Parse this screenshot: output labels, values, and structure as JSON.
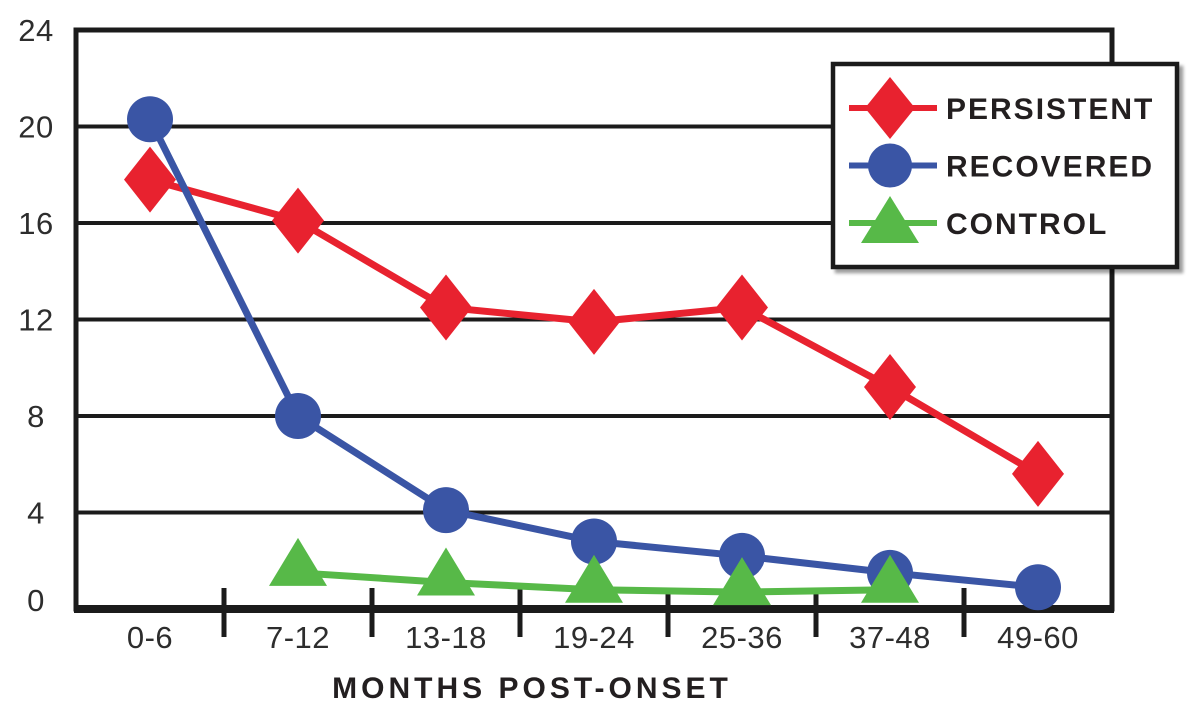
{
  "chart_data": {
    "type": "line",
    "xlabel": "MONTHS POST-ONSET",
    "categories": [
      "0-6",
      "7-12",
      "13-18",
      "19-24",
      "25-36",
      "37-48",
      "49-60"
    ],
    "ylim": [
      0,
      24
    ],
    "yticks": [
      0,
      4,
      8,
      12,
      16,
      20,
      24
    ],
    "grid": true,
    "legend_position": "top-right",
    "series": [
      {
        "name": "PERSISTENT",
        "marker": "diamond",
        "color": "#E8222F",
        "values": [
          17.8,
          16.1,
          12.5,
          11.9,
          12.5,
          9.2,
          5.6
        ]
      },
      {
        "name": "RECOVERED",
        "marker": "circle",
        "color": "#3A55A5",
        "values": [
          20.3,
          8.0,
          4.1,
          2.8,
          2.2,
          1.5,
          0.9
        ]
      },
      {
        "name": "CONTROL",
        "marker": "triangle",
        "color": "#57B948",
        "values": [
          null,
          1.5,
          1.1,
          0.8,
          0.7,
          0.8,
          null
        ]
      }
    ]
  },
  "colors": {
    "axis": "#1b1b1b",
    "tick_text": "#2d2d2d",
    "label_text": "#231f20",
    "background": "#ffffff",
    "legend_background": "#ffffff",
    "legend_border": "#1b1b1b"
  }
}
